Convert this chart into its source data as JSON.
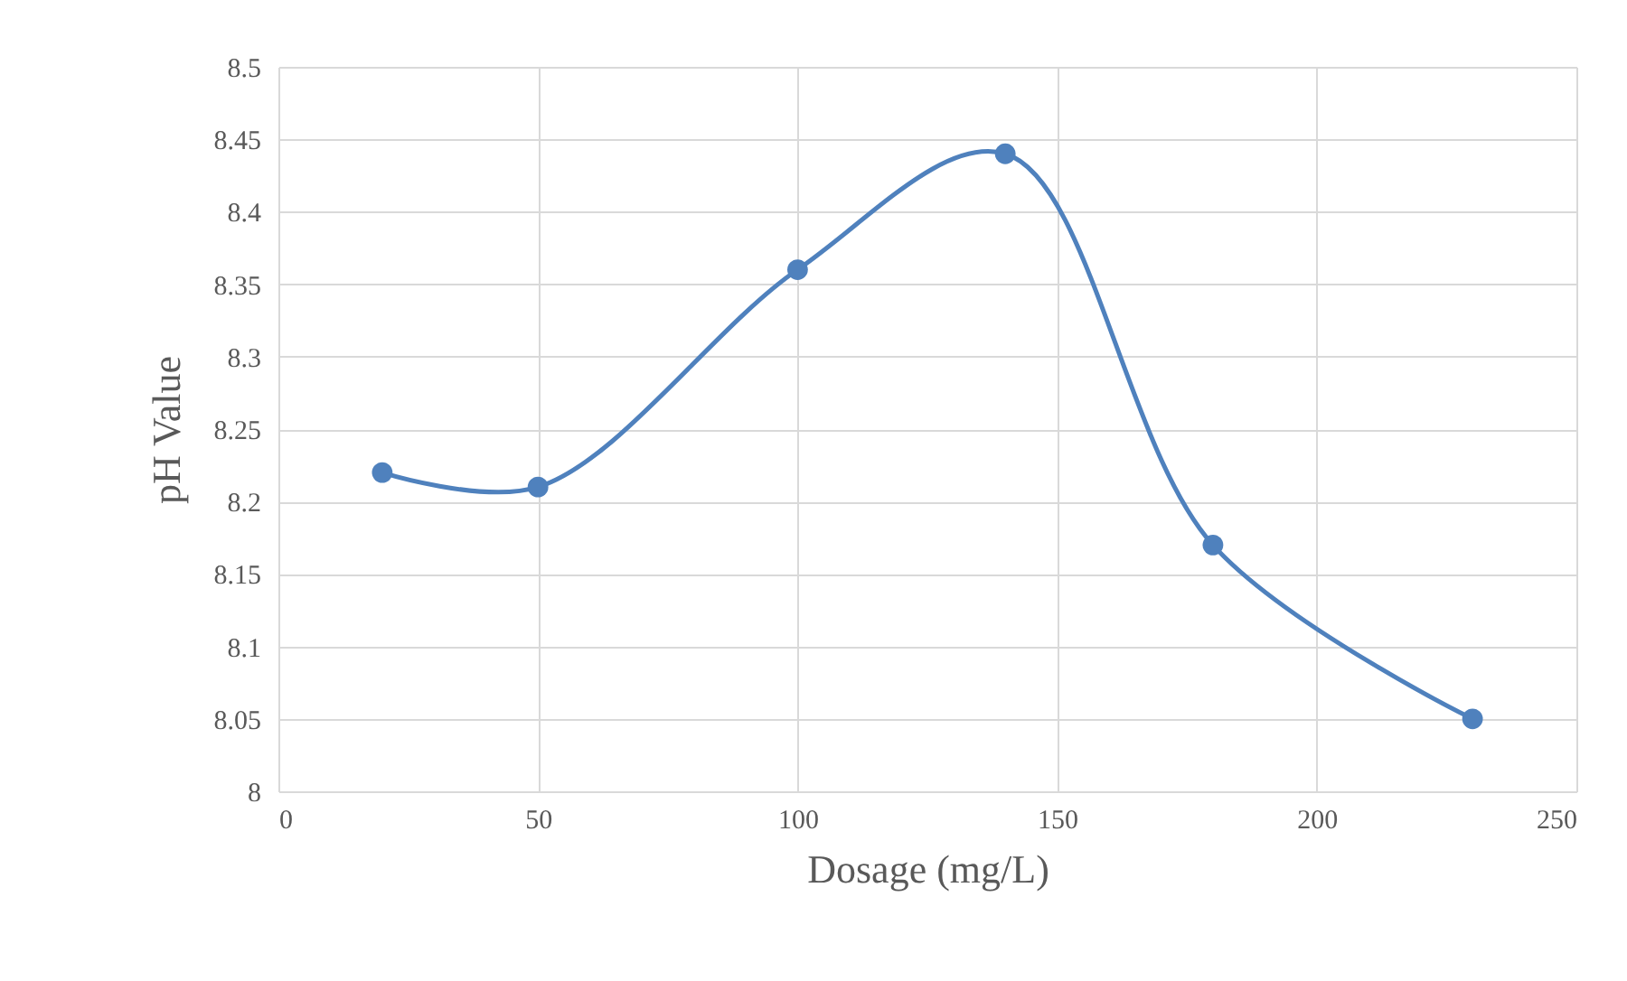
{
  "chart_data": {
    "type": "line",
    "xlabel": "Dosage (mg/L)",
    "ylabel": "pH Value",
    "x": [
      20,
      50,
      100,
      140,
      180,
      230
    ],
    "series": [
      {
        "color": "#4f81bd",
        "values": [
          8.22,
          8.21,
          8.36,
          8.44,
          8.17,
          8.05
        ]
      }
    ],
    "xlim": [
      0,
      250
    ],
    "xticks": [
      0,
      50,
      100,
      150,
      200,
      250
    ],
    "ylim": [
      8,
      8.5
    ],
    "yticks": [
      8,
      8.05,
      8.1,
      8.15,
      8.2,
      8.25,
      8.3,
      8.35,
      8.4,
      8.45,
      8.5
    ],
    "grid": true,
    "marker": "circle",
    "line_style": "solid"
  }
}
